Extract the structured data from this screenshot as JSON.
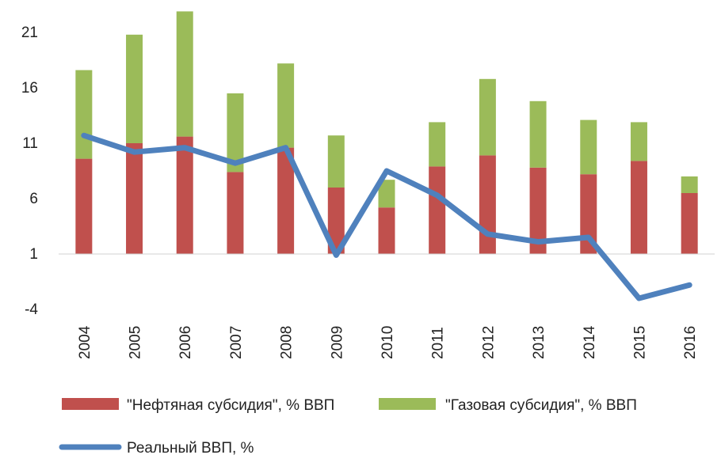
{
  "chart_data": {
    "type": "bar",
    "stacked": true,
    "categories": [
      "2004",
      "2005",
      "2006",
      "2007",
      "2008",
      "2009",
      "2010",
      "2011",
      "2012",
      "2013",
      "2014",
      "2015",
      "2016"
    ],
    "series": [
      {
        "name": "\"Нефтяная субсидия\", % ВВП",
        "type": "bar",
        "color": "#c0504d",
        "values": [
          8.6,
          10.0,
          10.6,
          7.4,
          9.6,
          6.0,
          4.2,
          7.9,
          8.9,
          7.8,
          7.2,
          8.4,
          5.5
        ]
      },
      {
        "name": "\"Газовая субсидия\", % ВВП",
        "type": "bar",
        "color": "#9bbb59",
        "values": [
          8.0,
          9.8,
          11.3,
          7.1,
          7.6,
          4.7,
          2.5,
          4.0,
          6.9,
          6.0,
          4.9,
          3.5,
          1.5
        ]
      },
      {
        "name": "Реальный ВВП, %",
        "type": "line",
        "color": "#4f81bd",
        "values": [
          11.7,
          10.2,
          10.6,
          9.2,
          10.6,
          0.9,
          8.5,
          6.3,
          2.8,
          2.1,
          2.5,
          -3.0,
          -1.8
        ]
      }
    ],
    "ylim": [
      -4,
      21
    ],
    "yticks": [
      "21",
      "16",
      "11",
      "6",
      "1",
      "-4"
    ],
    "baseline": 1,
    "grid": false,
    "legend_position": "bottom",
    "title": "",
    "xlabel": "",
    "ylabel": ""
  }
}
